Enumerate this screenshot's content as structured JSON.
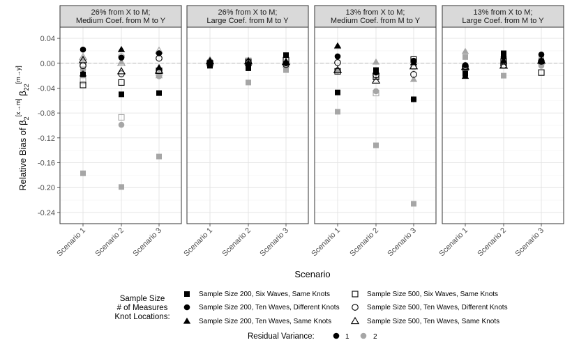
{
  "chart_data": {
    "type": "scatter",
    "xlabel": "Scenario",
    "ylabel_main": "Relative Bias of β",
    "ylabel_sub1": "2",
    "ylabel_sup1": "[x→m]",
    "ylabel_mid": " β",
    "ylabel_sub2": "22",
    "ylabel_sup2": "[m→y]",
    "ylim": [
      -0.258,
      0.058
    ],
    "yticks": [
      0.04,
      0.0,
      -0.04,
      -0.08,
      -0.12,
      -0.16,
      -0.2,
      -0.24
    ],
    "ytick_labels": [
      "0.04",
      "0.00",
      "-0.04",
      "-0.08",
      "-0.12",
      "-0.16",
      "-0.20",
      "-0.24"
    ],
    "categories": [
      "Scenario 1",
      "Scenario 2",
      "Scenario 3"
    ],
    "colors": {
      "1": "#000000",
      "2": "#a6a6a6"
    },
    "panels": [
      {
        "strip": [
          "26% from X to M;",
          "Medium Coef. from M to Y"
        ],
        "points": [
          {
            "x": 1,
            "y": -0.018,
            "shape": "square-filled",
            "rv": 1
          },
          {
            "x": 1,
            "y": -0.035,
            "shape": "square-open",
            "rv": 1
          },
          {
            "x": 1,
            "y": 0.022,
            "shape": "circle-filled",
            "rv": 1
          },
          {
            "x": 1,
            "y": -0.004,
            "shape": "circle-open",
            "rv": 1
          },
          {
            "x": 1,
            "y": -0.017,
            "shape": "triangle-filled",
            "rv": 1
          },
          {
            "x": 1,
            "y": 0.005,
            "shape": "triangle-open",
            "rv": 1
          },
          {
            "x": 1,
            "y": -0.177,
            "shape": "square-filled",
            "rv": 2
          },
          {
            "x": 1,
            "y": -0.028,
            "shape": "square-open",
            "rv": 2
          },
          {
            "x": 1,
            "y": -0.01,
            "shape": "circle-filled",
            "rv": 2
          },
          {
            "x": 1,
            "y": -0.002,
            "shape": "circle-open",
            "rv": 2
          },
          {
            "x": 1,
            "y": 0.008,
            "shape": "triangle-filled",
            "rv": 2
          },
          {
            "x": 1,
            "y": 0.01,
            "shape": "triangle-open",
            "rv": 2
          },
          {
            "x": 2,
            "y": -0.05,
            "shape": "square-filled",
            "rv": 1
          },
          {
            "x": 2,
            "y": -0.031,
            "shape": "square-open",
            "rv": 1
          },
          {
            "x": 2,
            "y": 0.009,
            "shape": "circle-filled",
            "rv": 1
          },
          {
            "x": 2,
            "y": -0.017,
            "shape": "circle-open",
            "rv": 1
          },
          {
            "x": 2,
            "y": 0.022,
            "shape": "triangle-filled",
            "rv": 1
          },
          {
            "x": 2,
            "y": -0.013,
            "shape": "triangle-open",
            "rv": 1
          },
          {
            "x": 2,
            "y": -0.199,
            "shape": "square-filled",
            "rv": 2
          },
          {
            "x": 2,
            "y": -0.087,
            "shape": "square-open",
            "rv": 2
          },
          {
            "x": 2,
            "y": -0.099,
            "shape": "circle-filled",
            "rv": 2
          },
          {
            "x": 2,
            "y": 0.011,
            "shape": "circle-open",
            "rv": 2
          },
          {
            "x": 2,
            "y": 0.002,
            "shape": "triangle-filled",
            "rv": 2
          },
          {
            "x": 2,
            "y": 0.0,
            "shape": "triangle-open",
            "rv": 2
          },
          {
            "x": 3,
            "y": -0.048,
            "shape": "square-filled",
            "rv": 1
          },
          {
            "x": 3,
            "y": -0.012,
            "shape": "square-open",
            "rv": 1
          },
          {
            "x": 3,
            "y": 0.016,
            "shape": "circle-filled",
            "rv": 1
          },
          {
            "x": 3,
            "y": 0.008,
            "shape": "circle-open",
            "rv": 1
          },
          {
            "x": 3,
            "y": -0.007,
            "shape": "triangle-filled",
            "rv": 1
          },
          {
            "x": 3,
            "y": -0.012,
            "shape": "triangle-open",
            "rv": 1
          },
          {
            "x": 3,
            "y": -0.15,
            "shape": "square-filled",
            "rv": 2
          },
          {
            "x": 3,
            "y": -0.016,
            "shape": "square-open",
            "rv": 2
          },
          {
            "x": 3,
            "y": -0.021,
            "shape": "circle-filled",
            "rv": 2
          },
          {
            "x": 3,
            "y": -0.018,
            "shape": "circle-open",
            "rv": 2
          },
          {
            "x": 3,
            "y": -0.02,
            "shape": "triangle-filled",
            "rv": 2
          },
          {
            "x": 3,
            "y": 0.02,
            "shape": "triangle-open",
            "rv": 2
          }
        ]
      },
      {
        "strip": [
          "26% from X to M;",
          "Large Coef. from M to Y"
        ],
        "points": [
          {
            "x": 1,
            "y": -0.004,
            "shape": "square-filled",
            "rv": 1
          },
          {
            "x": 1,
            "y": 0.0,
            "shape": "square-open",
            "rv": 1
          },
          {
            "x": 1,
            "y": -0.002,
            "shape": "circle-filled",
            "rv": 1
          },
          {
            "x": 1,
            "y": 0.001,
            "shape": "circle-open",
            "rv": 1
          },
          {
            "x": 1,
            "y": 0.004,
            "shape": "triangle-filled",
            "rv": 1
          },
          {
            "x": 1,
            "y": 0.003,
            "shape": "triangle-open",
            "rv": 1
          },
          {
            "x": 1,
            "y": 0.002,
            "shape": "square-filled",
            "rv": 2
          },
          {
            "x": 1,
            "y": -0.002,
            "shape": "circle-filled",
            "rv": 2
          },
          {
            "x": 1,
            "y": 0.006,
            "shape": "triangle-filled",
            "rv": 2
          },
          {
            "x": 2,
            "y": -0.008,
            "shape": "square-filled",
            "rv": 1
          },
          {
            "x": 2,
            "y": 0.002,
            "shape": "square-open",
            "rv": 1
          },
          {
            "x": 2,
            "y": -0.002,
            "shape": "circle-filled",
            "rv": 1
          },
          {
            "x": 2,
            "y": 0.001,
            "shape": "circle-open",
            "rv": 1
          },
          {
            "x": 2,
            "y": 0.0,
            "shape": "triangle-filled",
            "rv": 1
          },
          {
            "x": 2,
            "y": 0.003,
            "shape": "triangle-open",
            "rv": 1
          },
          {
            "x": 2,
            "y": -0.031,
            "shape": "square-filled",
            "rv": 2
          },
          {
            "x": 2,
            "y": 0.004,
            "shape": "square-open",
            "rv": 2
          },
          {
            "x": 2,
            "y": -0.004,
            "shape": "circle-filled",
            "rv": 2
          },
          {
            "x": 2,
            "y": 0.005,
            "shape": "triangle-filled",
            "rv": 2
          },
          {
            "x": 3,
            "y": 0.013,
            "shape": "square-filled",
            "rv": 1
          },
          {
            "x": 3,
            "y": 0.005,
            "shape": "square-open",
            "rv": 1
          },
          {
            "x": 3,
            "y": 0.0,
            "shape": "circle-filled",
            "rv": 1
          },
          {
            "x": 3,
            "y": -0.002,
            "shape": "circle-open",
            "rv": 1
          },
          {
            "x": 3,
            "y": 0.002,
            "shape": "triangle-filled",
            "rv": 1
          },
          {
            "x": 3,
            "y": 0.002,
            "shape": "triangle-open",
            "rv": 1
          },
          {
            "x": 3,
            "y": -0.011,
            "shape": "square-filled",
            "rv": 2
          },
          {
            "x": 3,
            "y": -0.005,
            "shape": "circle-filled",
            "rv": 2
          },
          {
            "x": 3,
            "y": -0.003,
            "shape": "triangle-filled",
            "rv": 2
          }
        ]
      },
      {
        "strip": [
          "13% from X to M;",
          "Medium Coef. from M to Y"
        ],
        "points": [
          {
            "x": 1,
            "y": -0.047,
            "shape": "square-filled",
            "rv": 1
          },
          {
            "x": 1,
            "y": -0.013,
            "shape": "square-open",
            "rv": 1
          },
          {
            "x": 1,
            "y": 0.011,
            "shape": "circle-filled",
            "rv": 1
          },
          {
            "x": 1,
            "y": 0.001,
            "shape": "circle-open",
            "rv": 1
          },
          {
            "x": 1,
            "y": 0.028,
            "shape": "triangle-filled",
            "rv": 1
          },
          {
            "x": 1,
            "y": -0.011,
            "shape": "triangle-open",
            "rv": 1
          },
          {
            "x": 1,
            "y": -0.078,
            "shape": "square-filled",
            "rv": 2
          },
          {
            "x": 1,
            "y": -0.012,
            "shape": "circle-filled",
            "rv": 2
          },
          {
            "x": 1,
            "y": 0.027,
            "shape": "triangle-filled",
            "rv": 2
          },
          {
            "x": 2,
            "y": -0.011,
            "shape": "square-filled",
            "rv": 1
          },
          {
            "x": 2,
            "y": -0.022,
            "shape": "square-open",
            "rv": 1
          },
          {
            "x": 2,
            "y": -0.015,
            "shape": "circle-filled",
            "rv": 1
          },
          {
            "x": 2,
            "y": -0.019,
            "shape": "circle-open",
            "rv": 1
          },
          {
            "x": 2,
            "y": -0.013,
            "shape": "triangle-filled",
            "rv": 1
          },
          {
            "x": 2,
            "y": -0.028,
            "shape": "triangle-open",
            "rv": 1
          },
          {
            "x": 2,
            "y": -0.132,
            "shape": "square-filled",
            "rv": 2
          },
          {
            "x": 2,
            "y": -0.048,
            "shape": "square-open",
            "rv": 2
          },
          {
            "x": 2,
            "y": -0.045,
            "shape": "circle-filled",
            "rv": 2
          },
          {
            "x": 2,
            "y": 0.002,
            "shape": "triangle-filled",
            "rv": 2
          },
          {
            "x": 3,
            "y": -0.058,
            "shape": "square-filled",
            "rv": 1
          },
          {
            "x": 3,
            "y": 0.006,
            "shape": "square-open",
            "rv": 1
          },
          {
            "x": 3,
            "y": 0.004,
            "shape": "circle-filled",
            "rv": 1
          },
          {
            "x": 3,
            "y": -0.018,
            "shape": "circle-open",
            "rv": 1
          },
          {
            "x": 3,
            "y": 0.001,
            "shape": "triangle-filled",
            "rv": 1
          },
          {
            "x": 3,
            "y": -0.005,
            "shape": "triangle-open",
            "rv": 1
          },
          {
            "x": 3,
            "y": -0.226,
            "shape": "square-filled",
            "rv": 2
          },
          {
            "x": 3,
            "y": -0.058,
            "shape": "circle-filled",
            "rv": 2
          },
          {
            "x": 3,
            "y": -0.026,
            "shape": "triangle-filled",
            "rv": 2
          },
          {
            "x": 3,
            "y": -0.006,
            "shape": "circle-open",
            "rv": 2
          }
        ]
      },
      {
        "strip": [
          "13% from X to M;",
          "Large Coef. from M to Y"
        ],
        "points": [
          {
            "x": 1,
            "y": -0.017,
            "shape": "square-filled",
            "rv": 1
          },
          {
            "x": 1,
            "y": -0.007,
            "shape": "square-open",
            "rv": 1
          },
          {
            "x": 1,
            "y": -0.003,
            "shape": "circle-filled",
            "rv": 1
          },
          {
            "x": 1,
            "y": -0.005,
            "shape": "circle-open",
            "rv": 1
          },
          {
            "x": 1,
            "y": -0.021,
            "shape": "triangle-filled",
            "rv": 1
          },
          {
            "x": 1,
            "y": -0.006,
            "shape": "triangle-open",
            "rv": 1
          },
          {
            "x": 1,
            "y": 0.01,
            "shape": "square-filled",
            "rv": 2
          },
          {
            "x": 1,
            "y": -0.008,
            "shape": "circle-filled",
            "rv": 2
          },
          {
            "x": 1,
            "y": 0.019,
            "shape": "triangle-filled",
            "rv": 2
          },
          {
            "x": 2,
            "y": 0.016,
            "shape": "square-filled",
            "rv": 1
          },
          {
            "x": 2,
            "y": 0.003,
            "shape": "square-open",
            "rv": 1
          },
          {
            "x": 2,
            "y": 0.01,
            "shape": "circle-filled",
            "rv": 1
          },
          {
            "x": 2,
            "y": -0.003,
            "shape": "circle-open",
            "rv": 1
          },
          {
            "x": 2,
            "y": 0.004,
            "shape": "triangle-filled",
            "rv": 1
          },
          {
            "x": 2,
            "y": -0.004,
            "shape": "triangle-open",
            "rv": 1
          },
          {
            "x": 2,
            "y": -0.02,
            "shape": "square-filled",
            "rv": 2
          },
          {
            "x": 2,
            "y": 0.005,
            "shape": "circle-filled",
            "rv": 2
          },
          {
            "x": 2,
            "y": 0.003,
            "shape": "triangle-filled",
            "rv": 2
          },
          {
            "x": 3,
            "y": 0.003,
            "shape": "square-filled",
            "rv": 1
          },
          {
            "x": 3,
            "y": -0.015,
            "shape": "square-open",
            "rv": 1
          },
          {
            "x": 3,
            "y": 0.014,
            "shape": "circle-filled",
            "rv": 1
          },
          {
            "x": 3,
            "y": 0.003,
            "shape": "circle-open",
            "rv": 1
          },
          {
            "x": 3,
            "y": 0.005,
            "shape": "triangle-filled",
            "rv": 1
          },
          {
            "x": 3,
            "y": 0.004,
            "shape": "triangle-open",
            "rv": 1
          },
          {
            "x": 3,
            "y": 0.007,
            "shape": "square-filled",
            "rv": 2
          },
          {
            "x": 3,
            "y": -0.004,
            "shape": "circle-filled",
            "rv": 2
          },
          {
            "x": 3,
            "y": 0.002,
            "shape": "triangle-filled",
            "rv": 2
          }
        ]
      }
    ],
    "legend": {
      "title_lines": [
        "Sample Size",
        "# of Measures",
        "Knot Locations:"
      ],
      "items": [
        {
          "shape": "square-filled",
          "label": "Sample Size 200, Six Waves, Same Knots"
        },
        {
          "shape": "square-open",
          "label": "Sample Size 500, Six Waves, Same Knots"
        },
        {
          "shape": "circle-filled",
          "label": "Sample Size 200, Ten Waves, Different Knots"
        },
        {
          "shape": "circle-open",
          "label": "Sample Size 500, Ten Waves, Different Knots"
        },
        {
          "shape": "triangle-filled",
          "label": "Sample Size 200, Ten Waves, Same Knots"
        },
        {
          "shape": "triangle-open",
          "label": "Sample Size 500, Ten Waves, Same Knots"
        }
      ],
      "rv_title": "Residual Variance:",
      "rv_items": [
        {
          "rv": 1,
          "label": "1"
        },
        {
          "rv": 2,
          "label": "2"
        }
      ]
    }
  }
}
